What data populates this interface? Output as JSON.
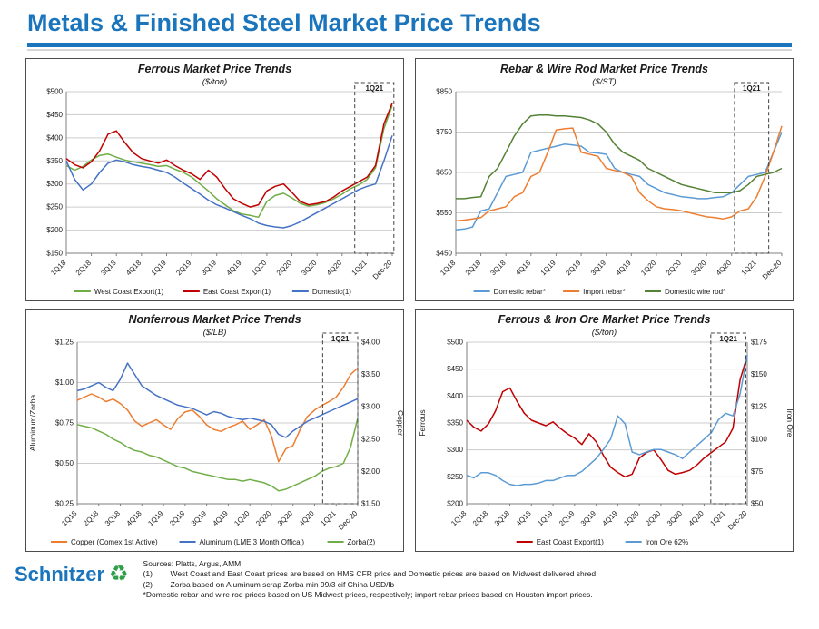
{
  "header": {
    "title": "Metals & Finished Steel Market Price Trends"
  },
  "footer": {
    "brand": "Schnitzer",
    "sources": "Sources: Platts, Argus, AMM",
    "notes": [
      {
        "label": "(1)",
        "text": "West Coast and East Coast prices are based on HMS CFR price and Domestic prices are based on Midwest delivered shred"
      },
      {
        "label": "(2)",
        "text": "Zorba based on Aluminum scrap Zorba min 99/3 cif China USD/lb"
      },
      {
        "label": "",
        "text": "*Domestic rebar and wire rod prices based on US Midwest prices, respectively; import rebar prices based on Houston import prices."
      }
    ]
  },
  "colors": {
    "accent_blue": "#1B75BC",
    "grid_line": "#CCCCCC",
    "axis_line": "#7F7F7F"
  },
  "chart_data": [
    {
      "type": "line",
      "title": "Ferrous Market Price Trends",
      "subtitle": "($/ton)",
      "x_labels": [
        "1Q18",
        "2Q18",
        "3Q18",
        "4Q18",
        "1Q19",
        "2Q19",
        "3Q19",
        "4Q19",
        "1Q20",
        "2Q20",
        "3Q20",
        "4Q20",
        "1Q21",
        "Dec-20"
      ],
      "y_left": {
        "min": 150,
        "max": 500,
        "label": null,
        "tick_labels": [
          "$500",
          "$450",
          "$400",
          "$350",
          "$300",
          "$250",
          "$200",
          "$150"
        ]
      },
      "y_right": null,
      "annotation": {
        "label": "1Q21",
        "x0": 0.885,
        "x1": 1.005
      },
      "series": [
        {
          "name": "West Coast Export(1)",
          "color": "#70AD47",
          "axis": "left",
          "values": [
            340,
            330,
            338,
            352,
            362,
            365,
            358,
            352,
            348,
            345,
            342,
            338,
            340,
            332,
            325,
            315,
            300,
            285,
            268,
            255,
            242,
            235,
            232,
            228,
            262,
            275,
            280,
            270,
            258,
            252,
            255,
            260,
            268,
            278,
            290,
            298,
            310,
            335,
            420,
            470
          ]
        },
        {
          "name": "East Coast Export(1)",
          "color": "#C00000",
          "axis": "left",
          "values": [
            355,
            342,
            335,
            348,
            372,
            408,
            415,
            390,
            368,
            355,
            350,
            345,
            352,
            340,
            330,
            322,
            310,
            330,
            315,
            290,
            268,
            258,
            250,
            255,
            285,
            295,
            300,
            282,
            262,
            255,
            258,
            262,
            272,
            285,
            295,
            305,
            315,
            340,
            430,
            475
          ]
        },
        {
          "name": "Domestic(1)",
          "color": "#4472C4",
          "axis": "left",
          "values": [
            350,
            310,
            287,
            300,
            325,
            345,
            352,
            348,
            342,
            338,
            335,
            330,
            325,
            315,
            302,
            290,
            278,
            265,
            255,
            248,
            240,
            232,
            225,
            215,
            210,
            207,
            205,
            210,
            218,
            228,
            238,
            248,
            258,
            268,
            278,
            288,
            295,
            300,
            350,
            405
          ]
        }
      ]
    },
    {
      "type": "line",
      "title": "Rebar & Wire Rod Market Price Trends",
      "subtitle": "($/ST)",
      "x_labels": [
        "1Q18",
        "2Q18",
        "3Q18",
        "4Q18",
        "1Q19",
        "2Q19",
        "3Q19",
        "4Q19",
        "1Q20",
        "2Q20",
        "3Q20",
        "4Q20",
        "1Q21",
        "Dec-20"
      ],
      "y_left": {
        "min": 450,
        "max": 850,
        "label": null,
        "tick_labels": [
          "$850",
          "$750",
          "$650",
          "$550",
          "$450"
        ]
      },
      "y_right": null,
      "annotation": {
        "label": "1Q21",
        "x0": 0.855,
        "x1": 0.96
      },
      "series": [
        {
          "name": "Domestic rebar*",
          "color": "#5B9BD5",
          "axis": "left",
          "values": [
            508,
            510,
            515,
            555,
            560,
            600,
            640,
            645,
            650,
            700,
            705,
            710,
            715,
            720,
            718,
            715,
            700,
            698,
            695,
            660,
            650,
            645,
            640,
            620,
            610,
            600,
            595,
            590,
            588,
            585,
            585,
            588,
            590,
            600,
            620,
            640,
            645,
            650,
            700,
            750
          ]
        },
        {
          "name": "Import rebar*",
          "color": "#ED7D31",
          "axis": "left",
          "values": [
            530,
            532,
            535,
            538,
            555,
            560,
            565,
            590,
            600,
            640,
            650,
            700,
            755,
            758,
            760,
            700,
            695,
            690,
            660,
            655,
            650,
            640,
            600,
            580,
            565,
            560,
            558,
            555,
            550,
            545,
            540,
            538,
            535,
            540,
            555,
            560,
            590,
            640,
            700,
            765
          ]
        },
        {
          "name": "Domestic wire rod*",
          "color": "#548235",
          "axis": "left",
          "values": [
            585,
            585,
            588,
            590,
            640,
            660,
            700,
            740,
            770,
            790,
            792,
            792,
            790,
            790,
            788,
            786,
            780,
            770,
            750,
            720,
            700,
            690,
            680,
            660,
            650,
            640,
            630,
            620,
            615,
            610,
            605,
            600,
            600,
            600,
            605,
            620,
            640,
            645,
            650,
            660
          ]
        }
      ]
    },
    {
      "type": "line",
      "title": "Nonferrous Market Price Trends",
      "subtitle": "($/LB)",
      "x_labels": [
        "1Q18",
        "2Q18",
        "3Q18",
        "4Q18",
        "1Q19",
        "2Q19",
        "3Q19",
        "4Q19",
        "1Q20",
        "2Q20",
        "3Q20",
        "4Q20",
        "1Q21",
        "Dec-20"
      ],
      "y_left": {
        "min": 0.25,
        "max": 1.25,
        "label": "Aluminum/Zorba",
        "tick_labels": [
          "$1.25",
          "$1.00",
          "$0.75",
          "$0.50",
          "$0.25"
        ]
      },
      "y_right": {
        "min": 1.5,
        "max": 4.0,
        "label": "Copper",
        "tick_labels": [
          "$4.00",
          "$3.50",
          "$3.00",
          "$2.50",
          "$2.00",
          "$1.50"
        ]
      },
      "annotation": {
        "label": "1Q21",
        "x0": 0.875,
        "x1": 1.0
      },
      "series": [
        {
          "name": "Copper (Comex 1st Active)",
          "color": "#ED7D31",
          "axis": "right",
          "values": [
            3.1,
            3.15,
            3.2,
            3.15,
            3.08,
            3.12,
            3.05,
            2.95,
            2.78,
            2.7,
            2.75,
            2.8,
            2.72,
            2.65,
            2.82,
            2.92,
            2.95,
            2.85,
            2.72,
            2.65,
            2.62,
            2.68,
            2.72,
            2.78,
            2.65,
            2.72,
            2.8,
            2.55,
            2.15,
            2.35,
            2.4,
            2.65,
            2.85,
            2.95,
            3.02,
            3.08,
            3.15,
            3.3,
            3.5,
            3.6
          ]
        },
        {
          "name": "Aluminum (LME 3 Month Offical)",
          "color": "#4472C4",
          "axis": "left",
          "values": [
            0.95,
            0.96,
            0.98,
            1.0,
            0.97,
            0.95,
            1.02,
            1.12,
            1.05,
            0.98,
            0.95,
            0.92,
            0.9,
            0.88,
            0.86,
            0.85,
            0.84,
            0.82,
            0.8,
            0.82,
            0.81,
            0.79,
            0.78,
            0.77,
            0.78,
            0.77,
            0.76,
            0.74,
            0.68,
            0.66,
            0.7,
            0.73,
            0.76,
            0.78,
            0.8,
            0.82,
            0.84,
            0.86,
            0.88,
            0.9
          ]
        },
        {
          "name": "Zorba(2)",
          "color": "#70AD47",
          "axis": "left",
          "values": [
            0.74,
            0.73,
            0.72,
            0.7,
            0.68,
            0.65,
            0.63,
            0.6,
            0.58,
            0.57,
            0.55,
            0.54,
            0.52,
            0.5,
            0.48,
            0.47,
            0.45,
            0.44,
            0.43,
            0.42,
            0.41,
            0.4,
            0.4,
            0.39,
            0.4,
            0.39,
            0.38,
            0.36,
            0.33,
            0.34,
            0.36,
            0.38,
            0.4,
            0.42,
            0.45,
            0.47,
            0.48,
            0.5,
            0.6,
            0.78
          ]
        }
      ]
    },
    {
      "type": "line",
      "title": "Ferrous & Iron Ore Market Price Trends",
      "subtitle": "($/ton)",
      "x_labels": [
        "1Q18",
        "2Q18",
        "3Q18",
        "4Q18",
        "1Q19",
        "2Q19",
        "3Q19",
        "4Q19",
        "1Q20",
        "2Q20",
        "3Q20",
        "4Q20",
        "1Q21",
        "Dec-20"
      ],
      "y_left": {
        "min": 200,
        "max": 500,
        "label": "Ferrous",
        "tick_labels": [
          "$500",
          "$450",
          "$400",
          "$350",
          "$300",
          "$250",
          "$200"
        ]
      },
      "y_right": {
        "min": 50,
        "max": 175,
        "label": "Iron Ore",
        "tick_labels": [
          "$175",
          "$150",
          "$125",
          "$100",
          "$75",
          "$50"
        ]
      },
      "annotation": {
        "label": "1Q21",
        "x0": 0.87,
        "x1": 0.995
      },
      "series": [
        {
          "name": "East Coast Export(1)",
          "color": "#C00000",
          "axis": "left",
          "values": [
            355,
            342,
            335,
            348,
            372,
            408,
            415,
            390,
            368,
            355,
            350,
            345,
            352,
            340,
            330,
            322,
            310,
            330,
            315,
            290,
            268,
            258,
            250,
            255,
            285,
            295,
            300,
            282,
            262,
            255,
            258,
            262,
            272,
            285,
            295,
            305,
            315,
            340,
            430,
            475
          ]
        },
        {
          "name": "Iron Ore 62%",
          "color": "#5B9BD5",
          "axis": "right",
          "values": [
            72,
            70,
            74,
            74,
            72,
            68,
            65,
            64,
            65,
            65,
            66,
            68,
            68,
            70,
            72,
            72,
            75,
            80,
            85,
            92,
            100,
            118,
            112,
            90,
            88,
            90,
            92,
            92,
            90,
            88,
            85,
            90,
            95,
            100,
            105,
            115,
            120,
            118,
            135,
            165
          ]
        }
      ]
    }
  ]
}
